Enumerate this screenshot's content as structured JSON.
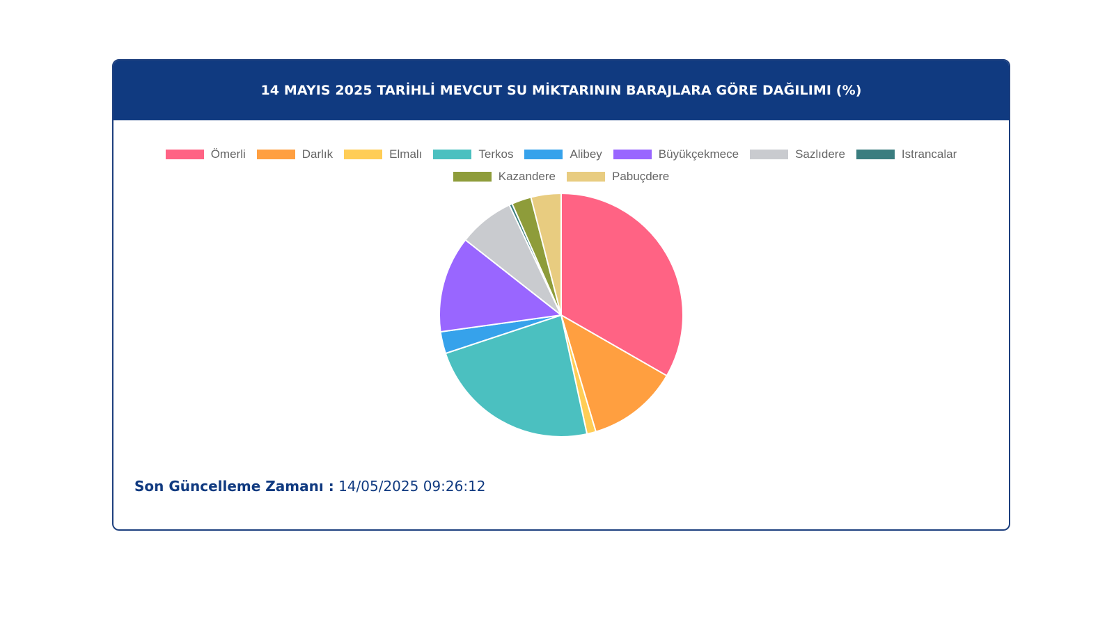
{
  "card": {
    "title": "14 MAYIS 2025 TARİHLİ MEVCUT SU MİKTARININ BARAJLARA GÖRE DAĞILIMI (%)",
    "header_color": "#103a80"
  },
  "footer": {
    "label": "Son Güncelleme Zamanı :",
    "value": "14/05/2025 09:26:12"
  },
  "chart_data": {
    "type": "pie",
    "title": "14 MAYIS 2025 TARİHLİ MEVCUT SU MİKTARININ BARAJLARA GÖRE DAĞILIMI (%)",
    "legend_position": "top",
    "categories": [
      "Ömerli",
      "Darlık",
      "Elmalı",
      "Terkos",
      "Alibey",
      "Büyükçekmece",
      "Sazlıdere",
      "Istrancalar",
      "Kazandere",
      "Pabuçdere"
    ],
    "values": [
      33.3,
      12.1,
      1.2,
      23.3,
      2.9,
      12.8,
      7.4,
      0.4,
      2.6,
      4.0
    ],
    "colors": [
      "#ff6384",
      "#ff9f40",
      "#ffcd56",
      "#4bc0c0",
      "#36a2eb",
      "#9966ff",
      "#c9cbcf",
      "#3a7d7f",
      "#8e9c3a",
      "#e8cc80"
    ]
  }
}
